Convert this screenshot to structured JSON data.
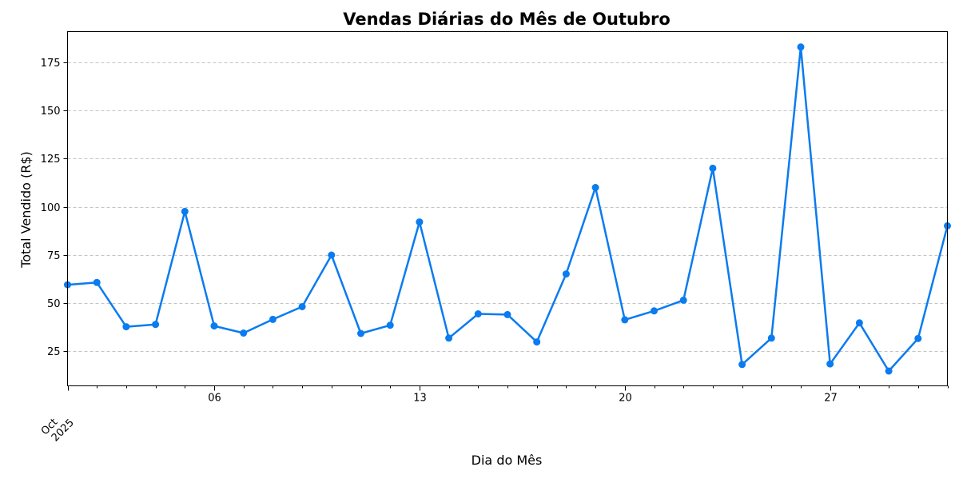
{
  "chart_data": {
    "type": "line",
    "title": "Vendas Diárias do Mês de Outubro",
    "xlabel": "Dia do Mês",
    "ylabel": "Total Vendido (R$)",
    "x": [
      "2025-10-01",
      "2025-10-02",
      "2025-10-03",
      "2025-10-04",
      "2025-10-05",
      "2025-10-06",
      "2025-10-07",
      "2025-10-08",
      "2025-10-09",
      "2025-10-10",
      "2025-10-11",
      "2025-10-12",
      "2025-10-13",
      "2025-10-14",
      "2025-10-15",
      "2025-10-16",
      "2025-10-17",
      "2025-10-18",
      "2025-10-19",
      "2025-10-20",
      "2025-10-21",
      "2025-10-22",
      "2025-10-23",
      "2025-10-24",
      "2025-10-25",
      "2025-10-26",
      "2025-10-27",
      "2025-10-28",
      "2025-10-29",
      "2025-10-30",
      "2025-10-31"
    ],
    "series": [
      {
        "values": [
          59.5,
          60.7,
          37.7,
          38.9,
          97.6,
          38.1,
          34.4,
          41.5,
          48.1,
          74.9,
          34.2,
          38.5,
          92.1,
          31.8,
          44.4,
          44.0,
          29.8,
          65.1,
          110.0,
          41.3,
          45.9,
          51.5,
          120.0,
          18.1,
          31.8,
          183.0,
          18.4,
          39.7,
          14.7,
          31.6,
          90.1
        ]
      }
    ],
    "xlim": [
      "2025-10-01",
      "2025-10-31"
    ],
    "ylim": [
      7,
      191
    ],
    "x_major_ticks": [
      "2025-10-01",
      "2025-10-06",
      "2025-10-13",
      "2025-10-20",
      "2025-10-27"
    ],
    "x_major_tick_labels": [
      "",
      "06",
      "13",
      "20",
      "27"
    ],
    "x_origin_label": [
      "Oct",
      "2025"
    ],
    "y_ticks": [
      25,
      50,
      75,
      100,
      125,
      150,
      175
    ],
    "y_tick_labels": [
      "25",
      "50",
      "75",
      "100",
      "125",
      "150",
      "175"
    ],
    "grid": "y-dashed",
    "line_color": "#0a7bf0"
  }
}
